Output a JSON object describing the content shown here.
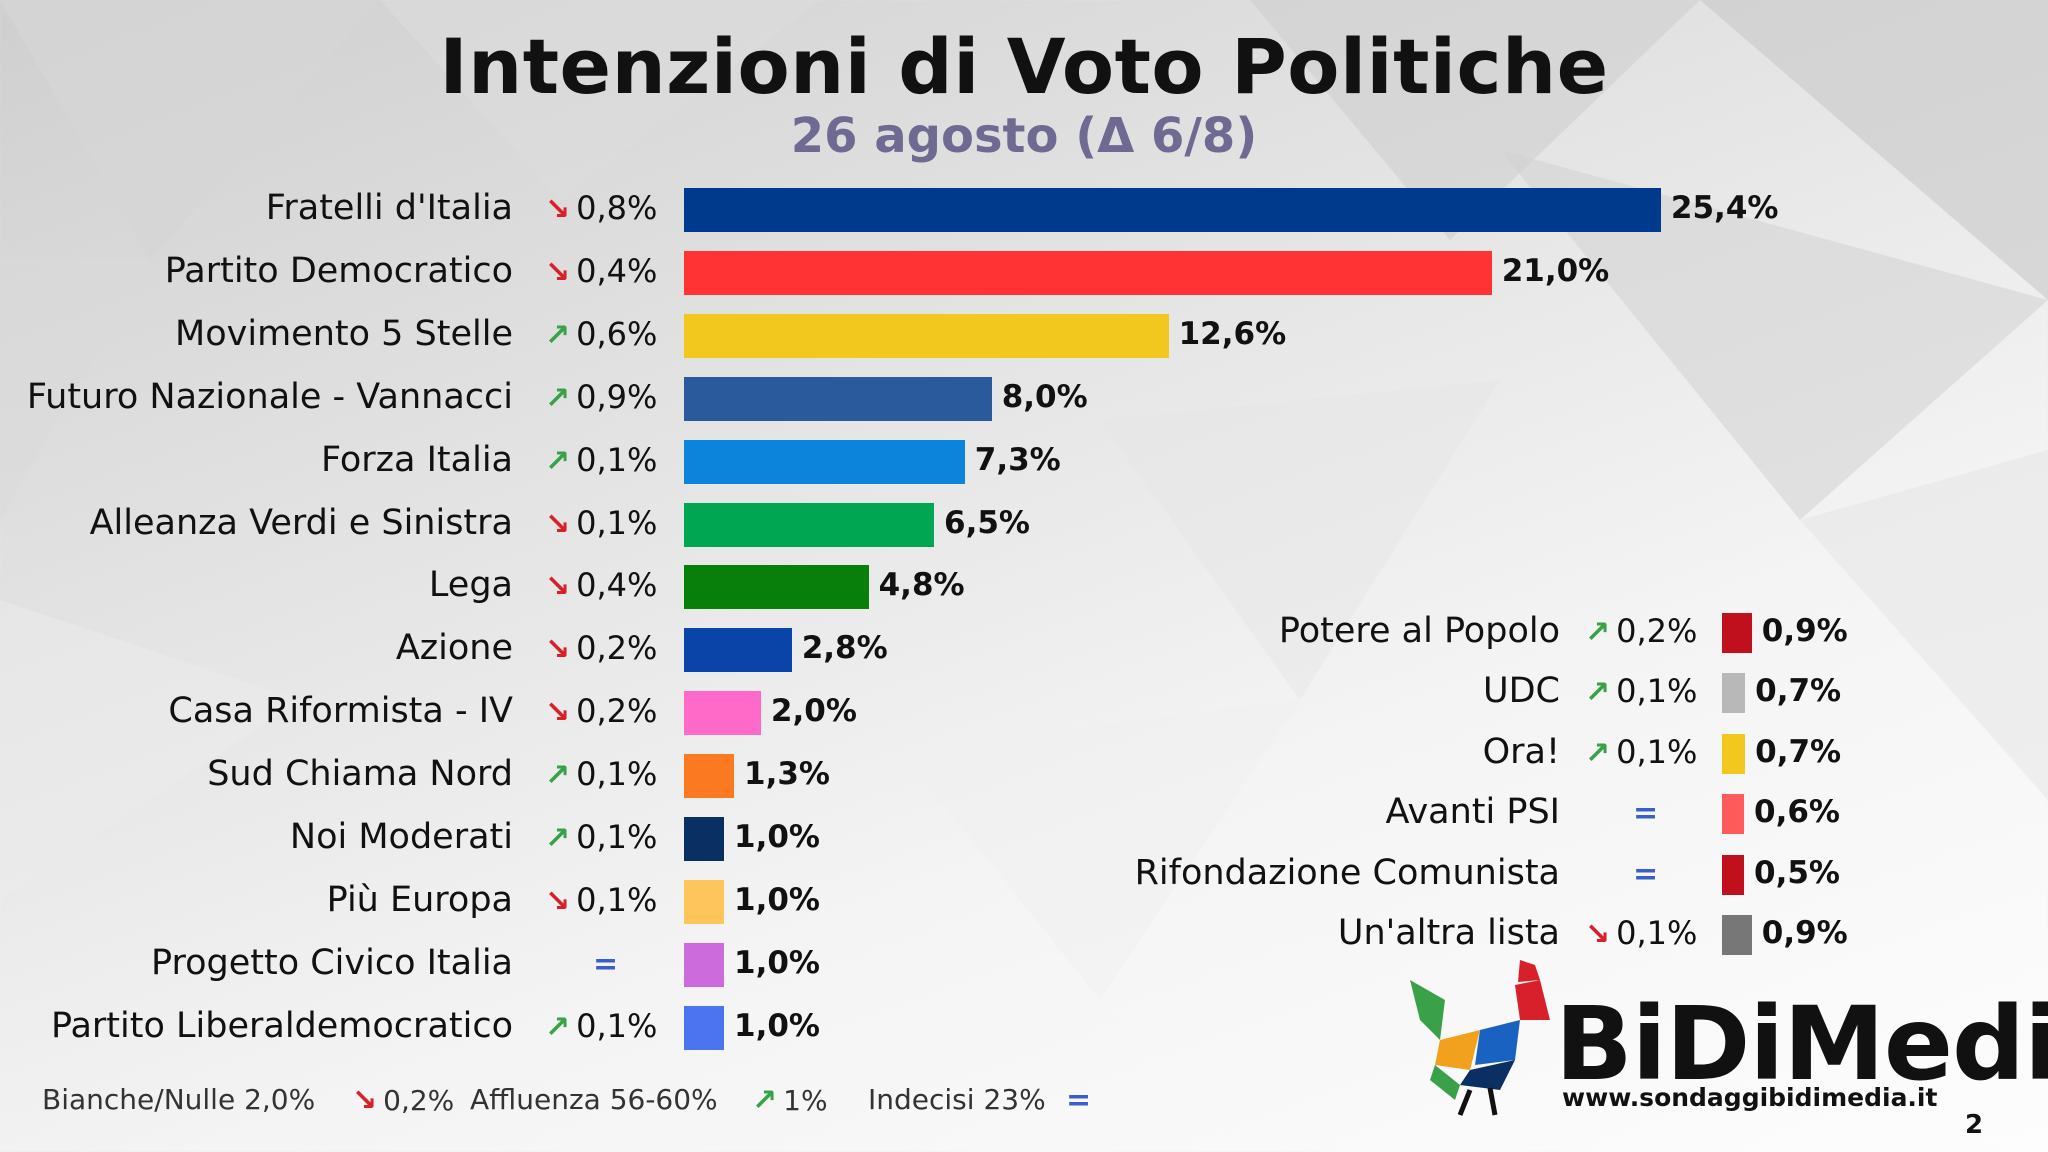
{
  "header": {
    "title": "Intenzioni di Voto Politiche",
    "subtitle": "26 agosto (Δ 6/8)"
  },
  "colors": {
    "arrow_down": "#d8202a",
    "arrow_up": "#3aa14a",
    "arrow_equal": "#3b5fc9"
  },
  "chart_data": [
    {
      "type": "bar",
      "orientation": "horizontal",
      "value_unit": "%",
      "categories": [
        "Fratelli d'Italia",
        "Partito Democratico",
        "Movimento 5 Stelle",
        "Futuro Nazionale - Vannacci",
        "Forza Italia",
        "Alleanza Verdi e Sinistra",
        "Lega",
        "Azione",
        "Casa Riformista - IV",
        "Sud Chiama Nord",
        "Noi Moderati",
        "Più Europa",
        "Progetto Civico Italia",
        "Partito Liberaldemocratico"
      ],
      "values": [
        25.4,
        21.0,
        12.6,
        8.0,
        7.3,
        6.5,
        4.8,
        2.8,
        2.0,
        1.3,
        1.0,
        1.0,
        1.0,
        1.0
      ],
      "value_labels": [
        "25,4%",
        "21,0%",
        "12,6%",
        "8,0%",
        "7,3%",
        "6,5%",
        "4,8%",
        "2,8%",
        "2,0%",
        "1,3%",
        "1,0%",
        "1,0%",
        "1,0%",
        "1,0%"
      ],
      "changes": [
        {
          "dir": "down",
          "label": "0,8%"
        },
        {
          "dir": "down",
          "label": "0,4%"
        },
        {
          "dir": "up",
          "label": "0,6%"
        },
        {
          "dir": "up",
          "label": "0,9%"
        },
        {
          "dir": "up",
          "label": "0,1%"
        },
        {
          "dir": "down",
          "label": "0,1%"
        },
        {
          "dir": "down",
          "label": "0,4%"
        },
        {
          "dir": "down",
          "label": "0,2%"
        },
        {
          "dir": "down",
          "label": "0,2%"
        },
        {
          "dir": "up",
          "label": "0,1%"
        },
        {
          "dir": "up",
          "label": "0,1%"
        },
        {
          "dir": "down",
          "label": "0,1%"
        },
        {
          "dir": "equal",
          "label": ""
        },
        {
          "dir": "up",
          "label": "0,1%"
        }
      ],
      "bar_colors": [
        "#003a8c",
        "#ff3333",
        "#f2c81e",
        "#2a5a9c",
        "#0d84dc",
        "#00a651",
        "#087f0a",
        "#0b44a8",
        "#ff69c8",
        "#fb7a21",
        "#0a2f62",
        "#fdc55c",
        "#cc6bdc",
        "#4d74f0"
      ],
      "xlim": [
        0,
        26
      ]
    },
    {
      "type": "bar",
      "orientation": "horizontal",
      "value_unit": "%",
      "categories": [
        "Potere al Popolo",
        "UDC",
        "Ora!",
        "Avanti PSI",
        "Rifondazione Comunista",
        "Un'altra lista"
      ],
      "values": [
        0.9,
        0.7,
        0.7,
        0.6,
        0.5,
        0.9
      ],
      "value_labels": [
        "0,9%",
        "0,7%",
        "0,7%",
        "0,6%",
        "0,5%",
        "0,9%"
      ],
      "changes": [
        {
          "dir": "up",
          "label": "0,2%"
        },
        {
          "dir": "up",
          "label": "0,1%"
        },
        {
          "dir": "up",
          "label": "0,1%"
        },
        {
          "dir": "equal",
          "label": ""
        },
        {
          "dir": "equal",
          "label": ""
        },
        {
          "dir": "down",
          "label": "0,1%"
        }
      ],
      "bar_colors": [
        "#c0101e",
        "#b8b8b8",
        "#f2c81e",
        "#ff5b5b",
        "#c0101e",
        "#777777"
      ],
      "xlim": [
        0,
        26
      ]
    }
  ],
  "footer": [
    {
      "label": "Bianche/Nulle 2,0%",
      "dir": "down",
      "change": "0,2%"
    },
    {
      "label": "Affluenza 56-60%",
      "dir": "up",
      "change": "1%"
    },
    {
      "label": "Indecisi 23%",
      "dir": "equal",
      "change": ""
    }
  ],
  "logo": {
    "brand": "BiDiMedia",
    "url": "www.sondaggibidimedia.it",
    "icon": "rooster-logo-icon"
  },
  "page_number": "2"
}
